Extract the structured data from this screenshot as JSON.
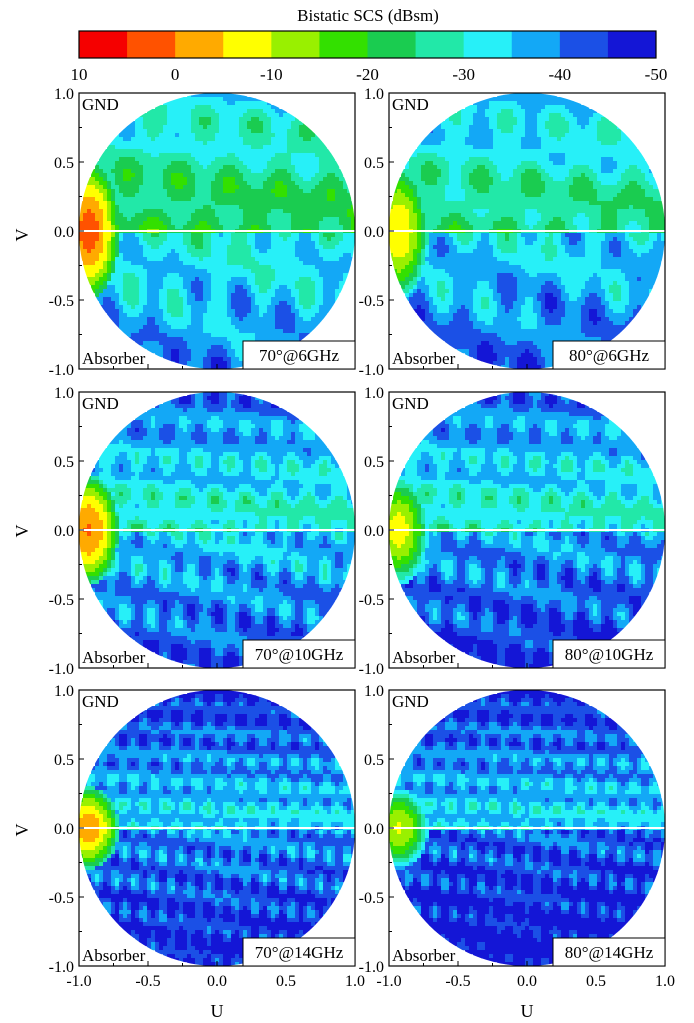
{
  "chart_data": {
    "type": "heatmap",
    "colorbar": {
      "title": "Bistatic SCS (dBsm)",
      "tick_labels": [
        "10",
        "0",
        "-10",
        "-20",
        "-30",
        "-40",
        "-50"
      ],
      "range": [
        10,
        -50
      ],
      "colors": [
        "#f50000",
        "#ff5200",
        "#ffaa00",
        "#ffff00",
        "#99f000",
        "#33e000",
        "#1acc50",
        "#22e8a8",
        "#27f0f8",
        "#13a8f6",
        "#1b50e6",
        "#1416d6"
      ]
    },
    "xlabel": "U",
    "ylabel": "V",
    "x_ticks": [
      "-1.0",
      "-0.5",
      "0.0",
      "0.5",
      "1.0"
    ],
    "y_ticks": [
      "1.0",
      "0.5",
      "0.0",
      "-0.5",
      "-1.0"
    ],
    "xlim": [
      -1.0,
      1.0
    ],
    "ylim": [
      -1.0,
      1.0
    ],
    "upper_half_label": "GND",
    "lower_half_label": "Absorber",
    "panels": [
      {
        "label": "70°@6GHz",
        "angle_deg": 70,
        "frequency_GHz": 6
      },
      {
        "label": "80°@6GHz",
        "angle_deg": 80,
        "frequency_GHz": 6
      },
      {
        "label": "70°@10GHz",
        "angle_deg": 70,
        "frequency_GHz": 10
      },
      {
        "label": "80°@10GHz",
        "angle_deg": 80,
        "frequency_GHz": 10
      },
      {
        "label": "70°@14GHz",
        "angle_deg": 70,
        "frequency_GHz": 14
      },
      {
        "label": "80°@14GHz",
        "angle_deg": 80,
        "frequency_GHz": 14
      }
    ]
  }
}
